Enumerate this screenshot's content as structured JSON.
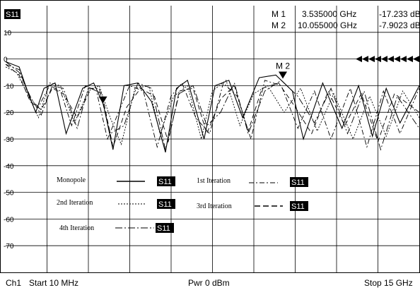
{
  "chart_data": {
    "type": "line",
    "channel_badge": "S11",
    "ylim": [
      -80,
      20
    ],
    "xlim": [
      0.01,
      15
    ],
    "grid": true,
    "y_ticks": [
      "10",
      "0",
      "-10",
      "-20",
      "-30",
      "-40",
      "-50",
      "-60",
      "-70"
    ],
    "y_tick_values": [
      10,
      0,
      -10,
      -20,
      -30,
      -40,
      -50,
      -60,
      -70
    ],
    "markers": [
      {
        "label": "M 1",
        "freq": "3.535000 GHz",
        "value": "-17.233 dB",
        "x": 3.535,
        "y": -17.233
      },
      {
        "label": "M 2",
        "freq": "10.055000 GHz",
        "value": "-7.9023 dB",
        "x": 10.055,
        "y": -7.9023
      }
    ],
    "marker_tag": "M 2",
    "reference_level": 0,
    "series": [
      {
        "name": "Monopole",
        "badge": "S11",
        "dash": "solid",
        "x": [
          0.01,
          0.5,
          0.8,
          1.1,
          1.4,
          1.8,
          2.2,
          2.8,
          3.2,
          3.55,
          3.9,
          4.3,
          4.8,
          5.3,
          5.8,
          6.2,
          6.6,
          7.2,
          7.6,
          8.1,
          8.6,
          9.2,
          9.8,
          10.4,
          10.8,
          11.5,
          12.2,
          12.8,
          13.3,
          13.8,
          14.3,
          15
        ],
        "y": [
          -1,
          -3,
          -12,
          -20,
          -11,
          -9,
          -28,
          -11,
          -9,
          -17,
          -34,
          -10,
          -9,
          -16,
          -35,
          -11,
          -8,
          -30,
          -10,
          -8,
          -22,
          -7,
          -6,
          -12,
          -30,
          -9,
          -26,
          -10,
          -29,
          -11,
          -24,
          -10
        ]
      },
      {
        "name": "1st Iteration",
        "badge": "S11",
        "dash": "dash-dot",
        "x": [
          0.01,
          0.5,
          0.9,
          1.2,
          1.6,
          2.0,
          2.4,
          2.9,
          3.3,
          3.7,
          4.1,
          4.5,
          5.0,
          5.5,
          6.0,
          6.4,
          6.9,
          7.4,
          7.9,
          8.4,
          8.9,
          9.4,
          10.0,
          10.6,
          11.2,
          11.8,
          12.5,
          13.1,
          13.7,
          14.3,
          15
        ],
        "y": [
          -2,
          -4,
          -15,
          -18,
          -10,
          -12,
          -25,
          -10,
          -12,
          -30,
          -20,
          -10,
          -12,
          -33,
          -14,
          -9,
          -22,
          -28,
          -9,
          -14,
          -30,
          -8,
          -10,
          -26,
          -12,
          -30,
          -11,
          -33,
          -12,
          -28,
          -11
        ]
      },
      {
        "name": "2nd Iteration",
        "badge": "S11",
        "dash": "dotted",
        "x": [
          0.01,
          0.4,
          0.8,
          1.2,
          1.6,
          2.0,
          2.5,
          3.0,
          3.4,
          3.8,
          4.2,
          4.7,
          5.2,
          5.6,
          6.1,
          6.6,
          7.1,
          7.5,
          8.0,
          8.5,
          9.0,
          9.5,
          10.1,
          10.7,
          11.3,
          11.9,
          12.6,
          13.2,
          13.8,
          14.4,
          15
        ],
        "y": [
          -3,
          -5,
          -13,
          -22,
          -9,
          -10,
          -24,
          -12,
          -10,
          -22,
          -32,
          -11,
          -10,
          -28,
          -14,
          -10,
          -30,
          -12,
          -8,
          -25,
          -13,
          -10,
          -20,
          -11,
          -27,
          -13,
          -30,
          -14,
          -29,
          -12,
          -22
        ]
      },
      {
        "name": "3rd Iteration",
        "badge": "S11",
        "dash": "dashed",
        "x": [
          0.01,
          0.5,
          0.9,
          1.3,
          1.7,
          2.1,
          2.6,
          3.1,
          3.5,
          3.9,
          4.4,
          4.9,
          5.4,
          5.9,
          6.3,
          6.8,
          7.3,
          7.8,
          8.3,
          8.8,
          9.3,
          9.9,
          10.5,
          11.1,
          11.7,
          12.3,
          12.9,
          13.5,
          14.1,
          15
        ],
        "y": [
          -2,
          -6,
          -16,
          -19,
          -11,
          -13,
          -22,
          -11,
          -13,
          -33,
          -18,
          -11,
          -14,
          -31,
          -12,
          -11,
          -28,
          -15,
          -10,
          -27,
          -11,
          -9,
          -18,
          -28,
          -12,
          -25,
          -13,
          -31,
          -13,
          -20
        ]
      },
      {
        "name": "4th Iteration",
        "badge": "S11",
        "dash": "long-dash-dot",
        "x": [
          0.01,
          0.5,
          0.9,
          1.3,
          1.7,
          2.1,
          2.6,
          3.0,
          3.4,
          3.8,
          4.3,
          4.8,
          5.3,
          5.8,
          6.3,
          6.8,
          7.3,
          7.8,
          8.3,
          8.8,
          9.4,
          10.0,
          10.6,
          11.2,
          11.8,
          12.4,
          13.0,
          13.6,
          14.2,
          15
        ],
        "y": [
          -1,
          -5,
          -14,
          -21,
          -10,
          -11,
          -26,
          -11,
          -11,
          -28,
          -25,
          -9,
          -11,
          -34,
          -13,
          -10,
          -25,
          -20,
          -9,
          -28,
          -12,
          -8,
          -14,
          -24,
          -11,
          -28,
          -12,
          -34,
          -14,
          -26
        ]
      }
    ],
    "footer": {
      "channel": "Ch1",
      "start": "Start  10 MHz",
      "power": "Pwr  0 dBm",
      "stop": "Stop  15 GHz"
    }
  }
}
